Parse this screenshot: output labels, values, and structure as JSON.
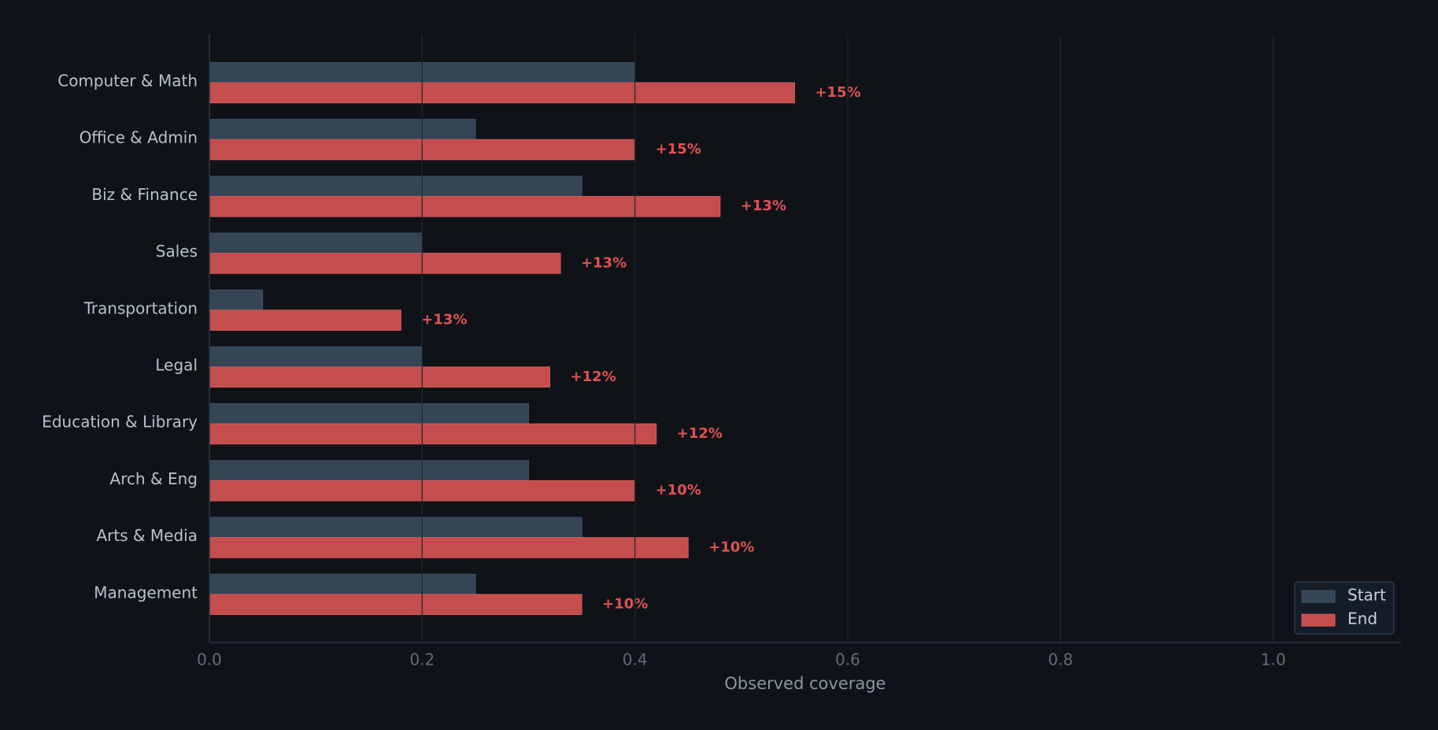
{
  "chart_data": {
    "type": "grouped-barh",
    "xlabel": "Observed coverage",
    "categories": [
      "Computer & Math",
      "Office & Admin",
      "Biz & Finance",
      "Sales",
      "Transportation",
      "Legal",
      "Education & Library",
      "Arch & Eng",
      "Arts & Media",
      "Management"
    ],
    "series": [
      {
        "name": "Start",
        "color": "#344556",
        "values": [
          0.4,
          0.25,
          0.35,
          0.2,
          0.05,
          0.2,
          0.3,
          0.3,
          0.35,
          0.25
        ]
      },
      {
        "name": "End",
        "color": "#c44d4d",
        "values": [
          0.55,
          0.4,
          0.48,
          0.33,
          0.18,
          0.32,
          0.42,
          0.4,
          0.45,
          0.35
        ]
      }
    ],
    "annotations": {
      "color": "#e05252",
      "values": [
        0.15,
        0.15,
        0.13,
        0.13,
        0.13,
        0.12,
        0.12,
        0.1,
        0.1,
        0.1
      ],
      "value_labels": [
        "+15%",
        "+15%",
        "+13%",
        "+13%",
        "+13%",
        "+12%",
        "+12%",
        "+10%",
        "+10%",
        "+10%"
      ]
    },
    "xlim": [
      0,
      1.12
    ],
    "xticks": [
      {
        "value": 0,
        "label": "0.0"
      },
      0.2,
      0.4,
      0.6,
      0.8,
      {
        "value": 1,
        "label": "1.0"
      }
    ],
    "grid": true,
    "legend": "lower right"
  }
}
